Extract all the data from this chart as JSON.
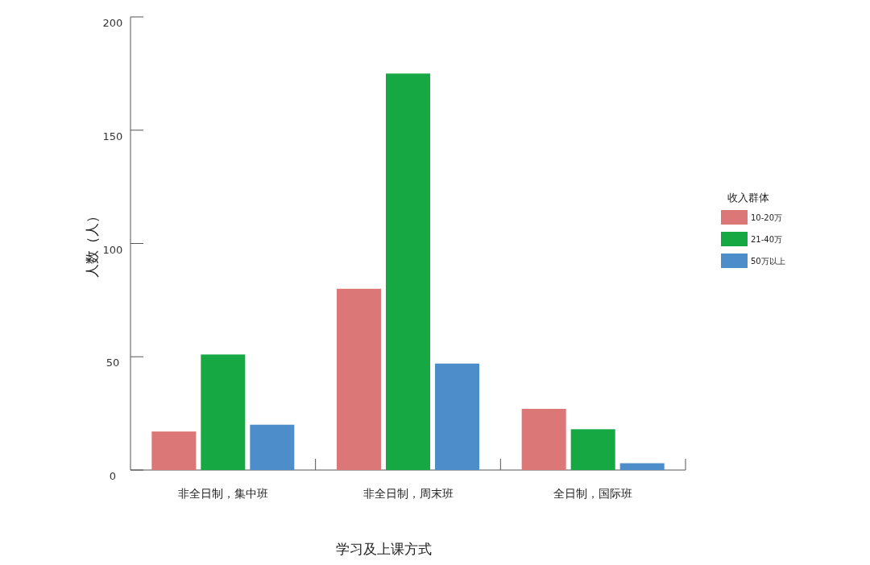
{
  "chart_data": {
    "type": "bar",
    "xlabel": "学习及上课方式",
    "ylabel": "人数（人）",
    "legend_title": "收入群体",
    "categories": [
      "非全日制，集中班",
      "非全日制，周末班",
      "全日制，国际班"
    ],
    "series": [
      {
        "name": "10-20万",
        "color": "#dc7777",
        "values": [
          17,
          80,
          27
        ]
      },
      {
        "name": "21-40万",
        "color": "#16a843",
        "values": [
          51,
          175,
          18
        ]
      },
      {
        "name": "50万以上",
        "color": "#4d8dca",
        "values": [
          20,
          47,
          3
        ]
      }
    ],
    "ylim": [
      0,
      200
    ],
    "yticks": [
      0,
      50,
      100,
      150,
      200
    ],
    "grid": false,
    "legend": "right"
  }
}
